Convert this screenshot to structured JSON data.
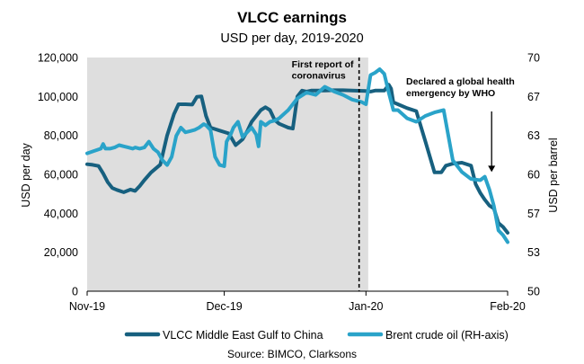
{
  "chart_data": {
    "type": "line",
    "title": "VLCC earnings",
    "subtitle": "USD per day, 2019-2020",
    "ylabel": "USD per day",
    "y2label": "USD per barrel",
    "ylim": [
      0,
      120000
    ],
    "y2lim": [
      50,
      70
    ],
    "y_ticks": [
      "0",
      "20,000",
      "40,000",
      "60,000",
      "80,000",
      "100,000",
      "120,000"
    ],
    "y_tick_values": [
      0,
      20000,
      40000,
      60000,
      80000,
      100000,
      120000
    ],
    "y2_ticks": [
      "50",
      "53",
      "57",
      "60",
      "63",
      "67",
      "70"
    ],
    "y2_tick_values": [
      50,
      53.33,
      56.67,
      60,
      63.33,
      66.67,
      70
    ],
    "x_range_days": [
      0,
      92
    ],
    "x_ticks": [
      {
        "label": "Nov-19",
        "day": 0
      },
      {
        "label": "Dec-19",
        "day": 30
      },
      {
        "label": "Jan-20",
        "day": 61
      },
      {
        "label": "Feb-20",
        "day": 92
      }
    ],
    "shaded_region": {
      "from_day": 0,
      "to_day": 61.5,
      "color": "#dedede"
    },
    "event_line": {
      "day": 59.5,
      "label": [
        "First report of",
        "coronavirus"
      ]
    },
    "annotation": {
      "label": [
        "Declared a global health",
        "emergency by WHO"
      ],
      "arrow_day": 88.5,
      "arrow_from_value": 61.8,
      "arrow_to_value": 60.2
    },
    "series": [
      {
        "name": "VLCC Middle East Gulf to China",
        "axis": "left",
        "color": "#17607f",
        "x": [
          0,
          1.2,
          2.5,
          3.5,
          4.5,
          5.5,
          6.5,
          8,
          9.5,
          10.5,
          11.5,
          12.5,
          14,
          16,
          17.5,
          19,
          20,
          21.5,
          23,
          24,
          25,
          26,
          27,
          29,
          31,
          32.5,
          34,
          35,
          36,
          37,
          38,
          39,
          40,
          41,
          42,
          43,
          44,
          45,
          46,
          47,
          48,
          49,
          50,
          51,
          52,
          54,
          56,
          58,
          61,
          62,
          63,
          64,
          65,
          66,
          66.5,
          67,
          68,
          70,
          72,
          74,
          76,
          77.5,
          78.5,
          80,
          82,
          84,
          85,
          86,
          87,
          88,
          89,
          90,
          91,
          92
        ],
        "values": [
          65200,
          64900,
          64300,
          60500,
          56000,
          53000,
          52000,
          50800,
          52200,
          51500,
          54000,
          57000,
          61000,
          65000,
          80000,
          91000,
          96000,
          96000,
          95800,
          99800,
          100000,
          90000,
          84000,
          82500,
          81000,
          75000,
          78000,
          82000,
          87000,
          90000,
          93000,
          94500,
          93000,
          88000,
          86000,
          85000,
          84000,
          83500,
          100000,
          103000,
          102500,
          103000,
          103000,
          103000,
          103000,
          103200,
          103200,
          103000,
          102800,
          102500,
          103000,
          103000,
          103000,
          106000,
          104000,
          97000,
          96000,
          94000,
          92500,
          77000,
          61000,
          61000,
          64500,
          65500,
          66000,
          64500,
          55000,
          50500,
          47000,
          44000,
          42500,
          35000,
          33000,
          30000
        ]
      },
      {
        "name": "Brent crude oil (RH-axis)",
        "axis": "right",
        "color": "#2aa3c9",
        "x": [
          0,
          1.5,
          3,
          3.5,
          4,
          5,
          6,
          7,
          8,
          9,
          10,
          10.5,
          11.5,
          12.5,
          13.5,
          14.5,
          15.5,
          16.5,
          17.5,
          18.5,
          19.5,
          20.5,
          21.5,
          22.5,
          23.5,
          24.5,
          25.5,
          26,
          27,
          28,
          29,
          30,
          30.5,
          31.5,
          32,
          33,
          34,
          35,
          36,
          37,
          37.5,
          38,
          39,
          40,
          41,
          42,
          44,
          46,
          48,
          50,
          52,
          54,
          56,
          58,
          60,
          61,
          62,
          63,
          64,
          65,
          66,
          67,
          68,
          70,
          72,
          74,
          76,
          78,
          80,
          82,
          84,
          86,
          87,
          88,
          89,
          90,
          91,
          92
        ],
        "values": [
          61.8,
          62.0,
          62.2,
          62.6,
          62.2,
          62.2,
          62.3,
          62.5,
          62.4,
          62.3,
          62.2,
          62.3,
          62.2,
          62.3,
          62.8,
          62.2,
          61.9,
          61.2,
          60.8,
          61.5,
          63.3,
          64.0,
          63.6,
          63.7,
          63.8,
          64.0,
          64.3,
          64.2,
          63.8,
          61.5,
          60.8,
          60.7,
          62.8,
          63.5,
          64.0,
          64.5,
          63.2,
          63.6,
          64.0,
          63.4,
          62.4,
          64.5,
          64.2,
          64.5,
          64.6,
          64.8,
          65.5,
          66.5,
          67.0,
          66.8,
          67.5,
          67.1,
          66.8,
          66.4,
          66.2,
          66.0,
          68.5,
          68.7,
          69.0,
          68.6,
          67.0,
          65.5,
          65.5,
          64.8,
          64.5,
          65.0,
          65.3,
          65.5,
          61.2,
          60.2,
          59.6,
          59.5,
          59.8,
          58.7,
          57.3,
          55.2,
          54.8,
          54.2
        ]
      }
    ],
    "source": "Source: BIMCO, Clarksons"
  }
}
